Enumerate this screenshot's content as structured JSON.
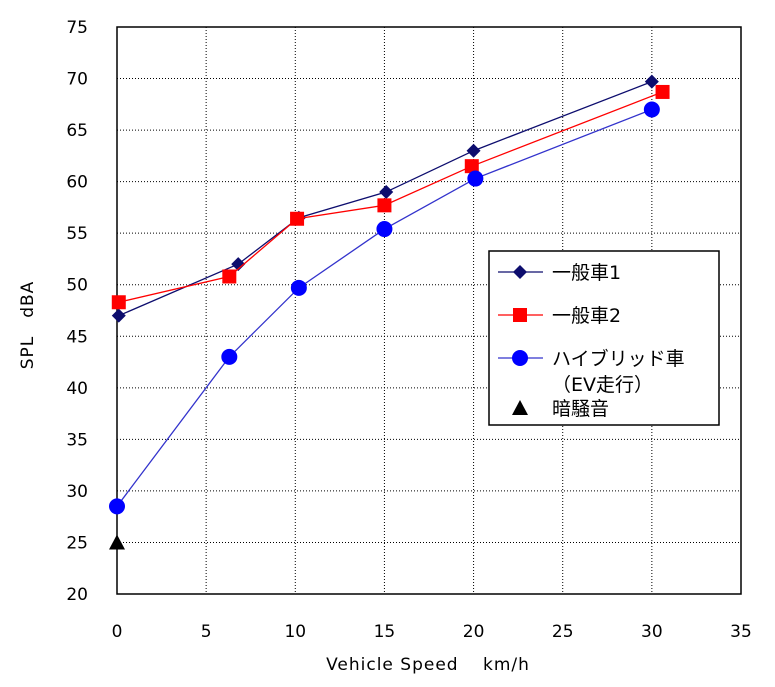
{
  "chart_data": {
    "type": "line",
    "xlabel": "Vehicle Speed　 km/h",
    "ylabel": "SPL　dBA",
    "xlim": [
      0,
      35
    ],
    "ylim": [
      20,
      75
    ],
    "x_ticks": [
      "0",
      "5",
      "10",
      "15",
      "20",
      "25",
      "30",
      "35"
    ],
    "y_ticks": [
      "20",
      "25",
      "30",
      "35",
      "40",
      "45",
      "50",
      "55",
      "60",
      "65",
      "70",
      "75"
    ],
    "grid": true,
    "legend_position": "right",
    "series": [
      {
        "name": "一般車1",
        "marker": "diamond",
        "color": "#0d0d6e",
        "points": [
          [
            0.1,
            47.0
          ],
          [
            6.8,
            52.0
          ],
          [
            10.2,
            56.5
          ],
          [
            15.1,
            59.0
          ],
          [
            20.0,
            63.0
          ],
          [
            30.0,
            69.7
          ]
        ]
      },
      {
        "name": "一般車2",
        "marker": "square",
        "color": "#ff0000",
        "points": [
          [
            0.1,
            48.3
          ],
          [
            6.3,
            50.8
          ],
          [
            10.1,
            56.4
          ],
          [
            15.0,
            57.7
          ],
          [
            19.9,
            61.5
          ],
          [
            30.6,
            68.7
          ]
        ]
      },
      {
        "name": "ハイブリッド車",
        "name_line2": "（EV走行）",
        "marker": "circle",
        "color": "#0000ff",
        "line_color": "#3333cc",
        "points": [
          [
            0.0,
            28.5
          ],
          [
            6.3,
            43.0
          ],
          [
            10.2,
            49.7
          ],
          [
            15.0,
            55.4
          ],
          [
            20.1,
            60.3
          ],
          [
            30.0,
            67.0
          ]
        ]
      },
      {
        "name": "暗騒音",
        "marker": "triangle",
        "color": "#000000",
        "points": [
          [
            0.0,
            25.0
          ]
        ]
      }
    ]
  }
}
